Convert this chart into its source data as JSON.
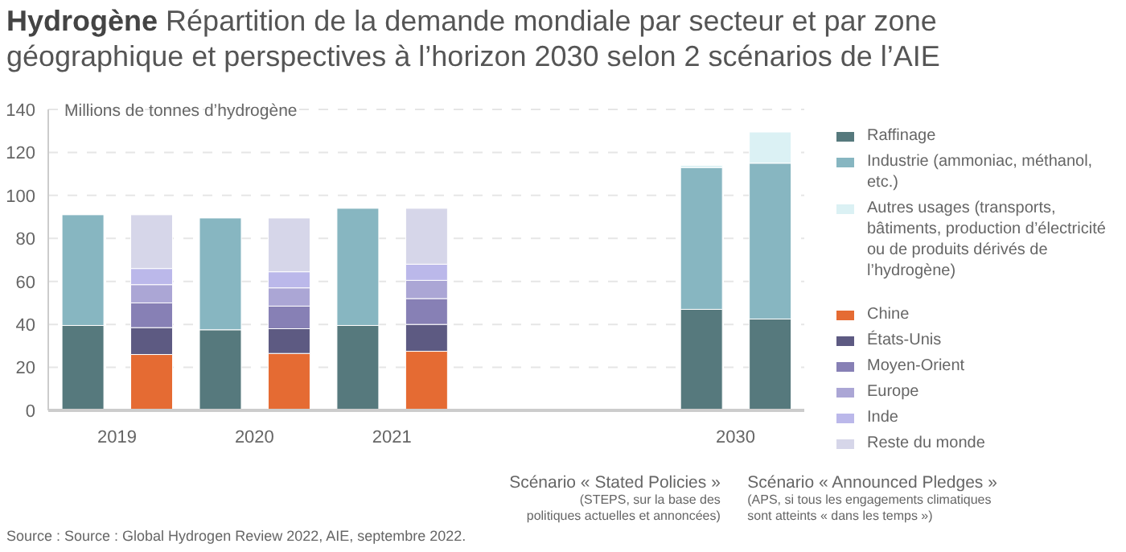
{
  "chart_data": {
    "type": "bar",
    "title": "Hydrogène",
    "subtitle": "Répartition de la demande mondiale par secteur et par zone géographique et perspectives à l’horizon 2030 selon 2 scénarios de l’AIE",
    "ylabel": "Millions de tonnes d’hydrogène",
    "categories": [
      "2019",
      null,
      "2020",
      null,
      "2021",
      null,
      null,
      null,
      null,
      "2030",
      null
    ],
    "stacked": true,
    "ylim": [
      0,
      140
    ],
    "yticks": [
      0,
      20,
      40,
      60,
      80,
      100,
      120,
      140
    ],
    "grid": "y",
    "legend": "right",
    "series": [
      {
        "name": "Raffinage",
        "color": "#56797d",
        "values": [
          39.5,
          null,
          37.5,
          null,
          39.5,
          null,
          null,
          null,
          null,
          47,
          42.5
        ]
      },
      {
        "name": "Industrie (ammoniac, méthanol, etc.)",
        "color": "#87b6c1",
        "values": [
          51.5,
          null,
          52,
          null,
          54.5,
          null,
          null,
          null,
          null,
          66,
          72.5
        ]
      },
      {
        "name": "Autres usages (transports, bâtiments, production d’électricité ou de produits dérivés de l’hydrogène)",
        "color": "#dbf1f4",
        "values": [
          null,
          null,
          null,
          null,
          null,
          null,
          null,
          null,
          null,
          1,
          14.5
        ]
      },
      {
        "name": "Chine",
        "color": "#e56b33",
        "values": [
          null,
          26,
          null,
          26.5,
          null,
          27.5,
          null,
          null,
          null,
          null,
          null
        ]
      },
      {
        "name": "États-Unis",
        "color": "#5d5a82",
        "values": [
          null,
          12.5,
          null,
          11.5,
          null,
          12.5,
          null,
          null,
          null,
          null,
          null
        ]
      },
      {
        "name": "Moyen-Orient",
        "color": "#8780b5",
        "values": [
          null,
          11.5,
          null,
          10.5,
          null,
          12,
          null,
          null,
          null,
          null,
          null
        ]
      },
      {
        "name": "Europe",
        "color": "#aba6d5",
        "values": [
          null,
          8.5,
          null,
          8.5,
          null,
          8.5,
          null,
          null,
          null,
          null,
          null
        ]
      },
      {
        "name": "Inde",
        "color": "#bbb8ea",
        "values": [
          null,
          7.5,
          null,
          7.5,
          null,
          7.5,
          null,
          null,
          null,
          null,
          null
        ]
      },
      {
        "name": "Reste du monde",
        "color": "#d6d6e9",
        "values": [
          null,
          25,
          null,
          25,
          null,
          26,
          null,
          null,
          null,
          null,
          null
        ]
      }
    ],
    "annotations": [
      "Scénario « Stated Policies »",
      "(STEPS, sur la base des politiques actuelles et annoncées)",
      "Scénario « Announced Pledges »",
      "(APS, si tous les engagements climatiques sont atteints « dans les temps »)",
      "Source : Source : Global Hydrogen Review 2022, AIE, septembre 2022."
    ]
  }
}
